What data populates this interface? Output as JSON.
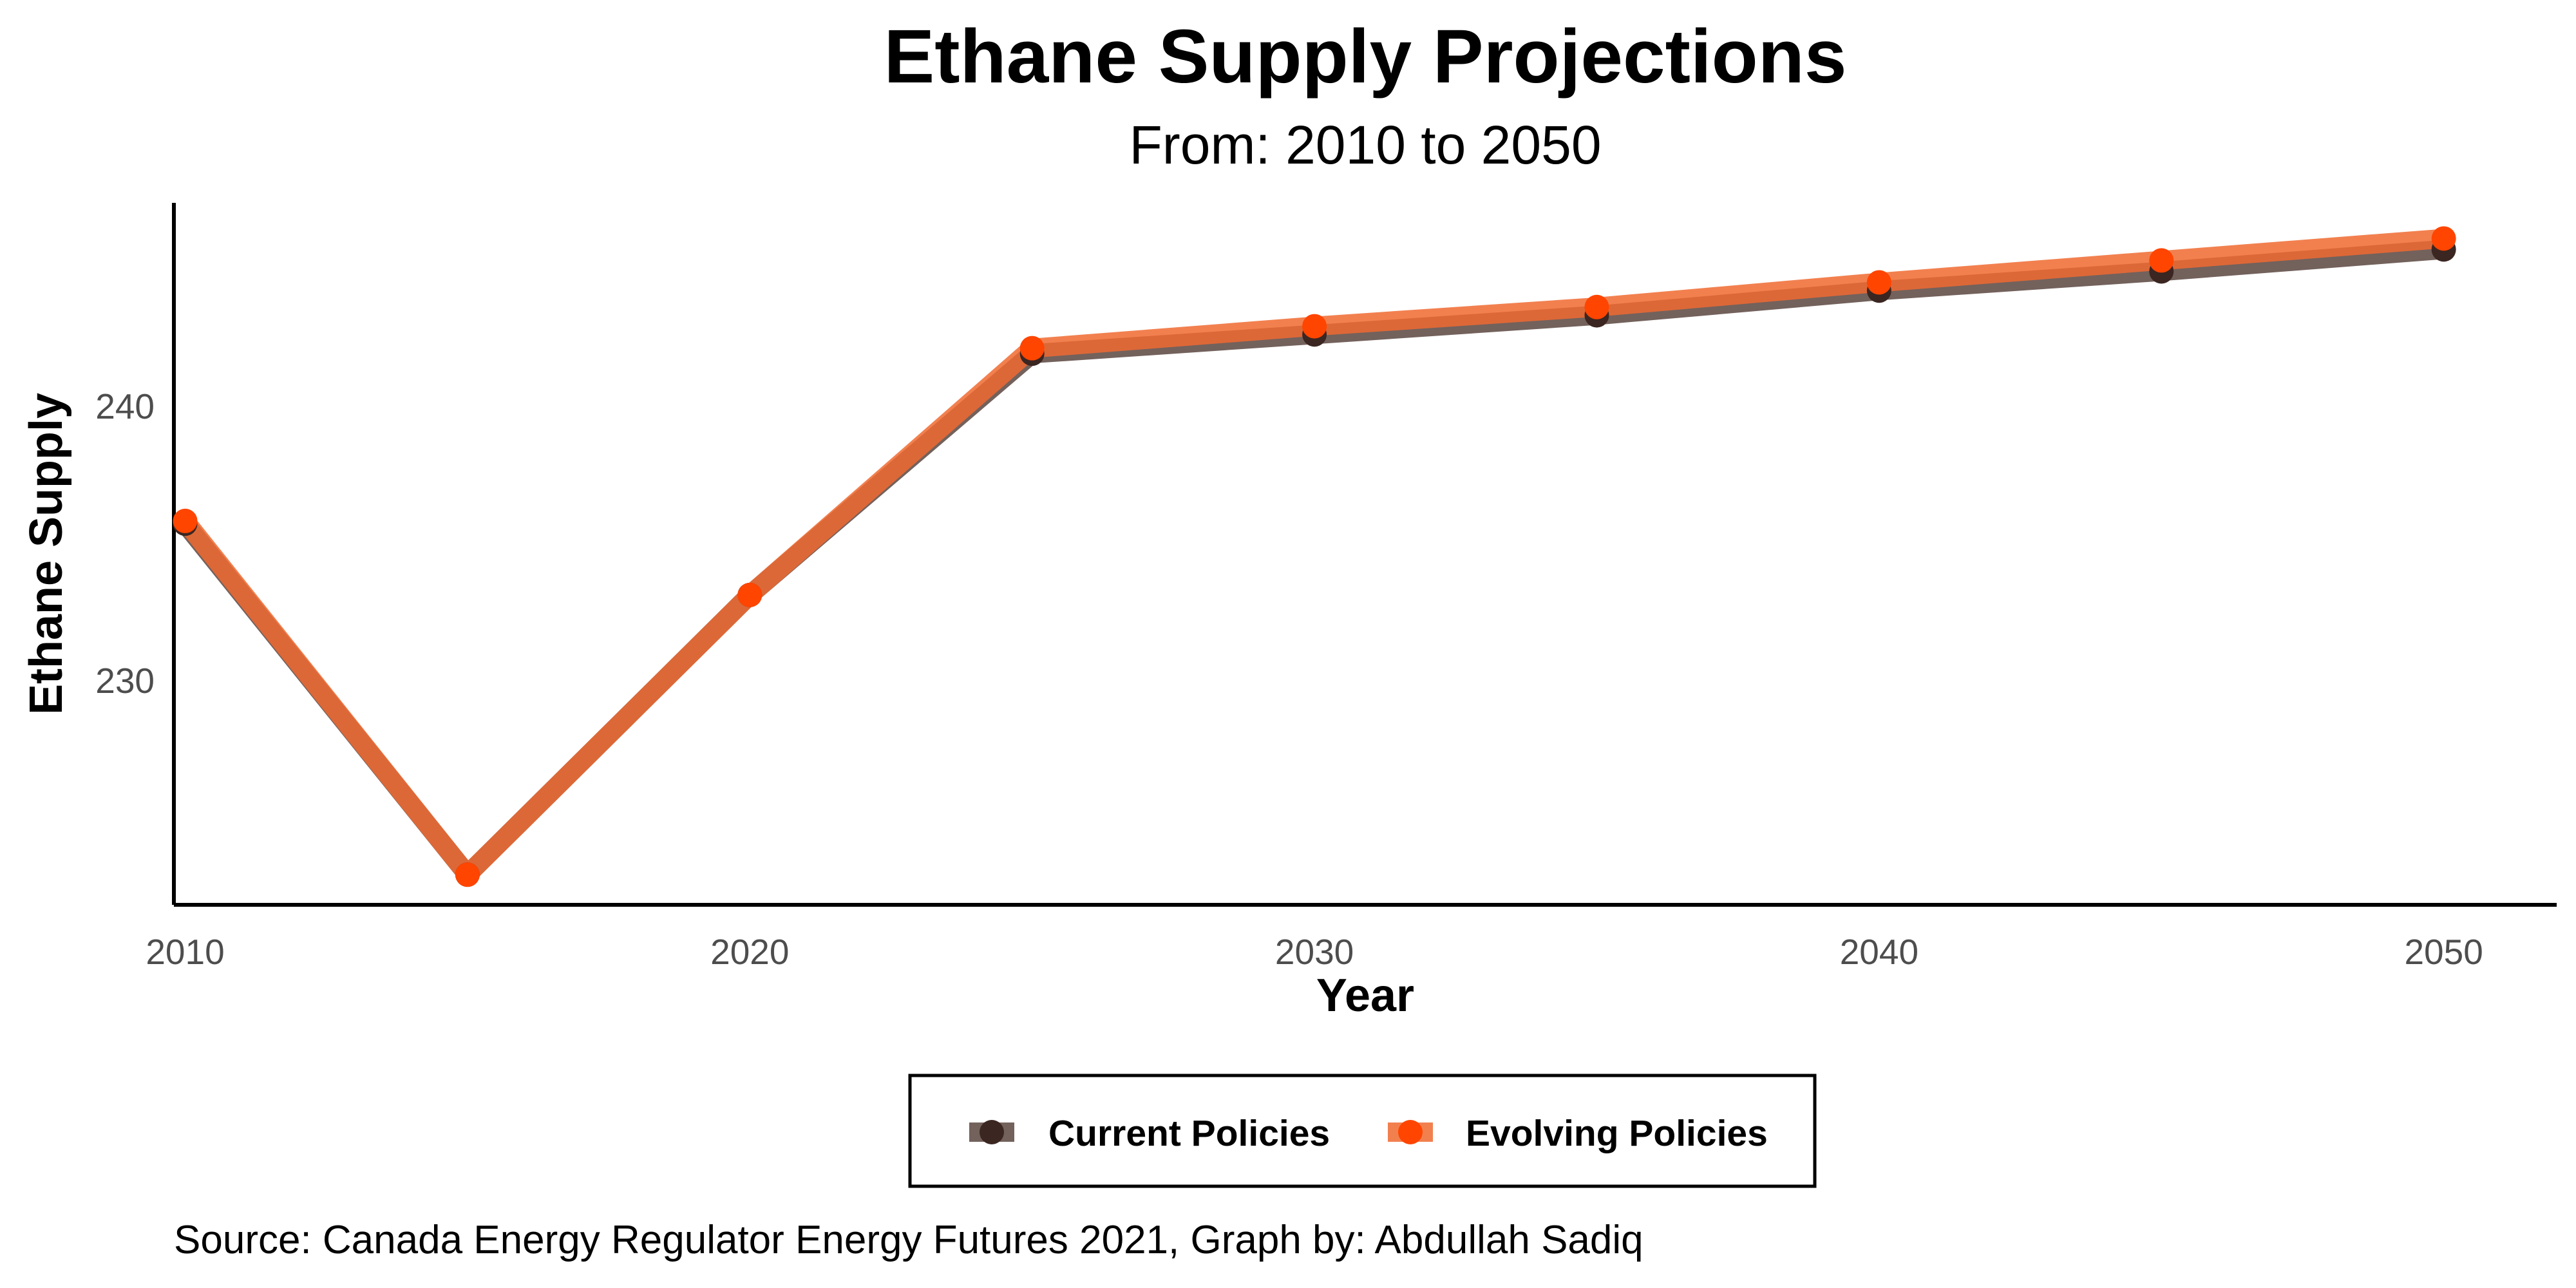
{
  "colors": {
    "current": "#3b2622",
    "current_line": "#5a4540",
    "evolving": "#ff4500",
    "evolving_line": "#f06a30",
    "axis": "#000000",
    "tick_text": "#4d4d4d"
  },
  "chart_data": {
    "type": "line",
    "title": "Ethane Supply Projections",
    "subtitle": "From: 2010 to 2050",
    "xlabel": "Year",
    "ylabel": "Ethane Supply",
    "caption": "Source: Canada Energy Regulator Energy Futures 2021, Graph by: Abdullah Sadiq",
    "x": [
      2010,
      2015,
      2020,
      2025,
      2030,
      2035,
      2040,
      2045,
      2050
    ],
    "xlim": [
      2009.8,
      2052
    ],
    "ylim": [
      221.8,
      247.4
    ],
    "x_ticks": [
      {
        "value": 2010,
        "label": "2010"
      },
      {
        "value": 2020,
        "label": "2020"
      },
      {
        "value": 2030,
        "label": "2030"
      },
      {
        "value": 2040,
        "label": "2040"
      },
      {
        "value": 2050,
        "label": "2050"
      }
    ],
    "y_ticks": [
      {
        "value": 230,
        "label": "230"
      },
      {
        "value": 240,
        "label": "240"
      }
    ],
    "grid": false,
    "legend_position": "bottom",
    "series": [
      {
        "name": "Current Policies",
        "color_key": "current",
        "values": [
          235.7,
          222.9,
          233.1,
          241.9,
          242.6,
          243.3,
          244.2,
          244.9,
          245.7
        ]
      },
      {
        "name": "Evolving Policies",
        "color_key": "evolving",
        "values": [
          235.8,
          222.9,
          233.1,
          242.1,
          242.9,
          243.6,
          244.5,
          245.3,
          246.1
        ]
      }
    ]
  }
}
